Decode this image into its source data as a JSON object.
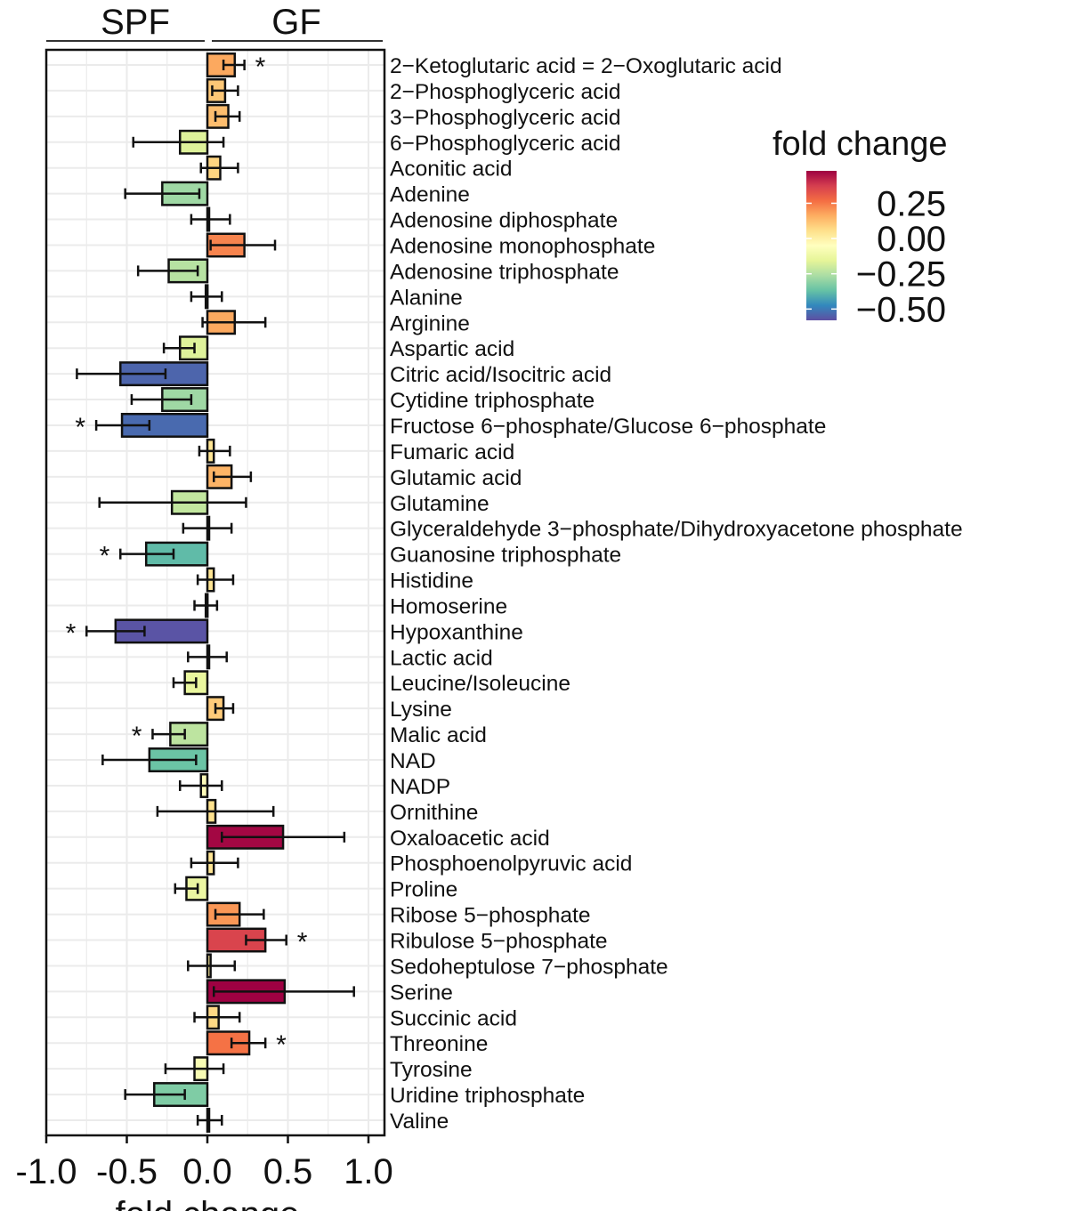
{
  "chart_data": {
    "type": "bar",
    "orientation": "horizontal",
    "group_labels": {
      "left": "SPF",
      "right": "GF"
    },
    "xlabel": "fold change",
    "xlim": [
      -1.0,
      1.0
    ],
    "xticks": [
      "-1.0",
      "-0.5",
      "0.0",
      "0.5",
      "1.0"
    ],
    "xtick_values": [
      -1.0,
      -0.5,
      0.0,
      0.5,
      1.0
    ],
    "grid": true,
    "legend": {
      "title": "fold change",
      "placement": "right",
      "ticks": [
        "0.25",
        "0.00",
        "-0.25",
        "-0.50"
      ],
      "tick_values": [
        0.25,
        0.0,
        -0.25,
        -0.5
      ],
      "range": [
        -0.58,
        0.48
      ],
      "colormap": [
        "#5e4fa2",
        "#3288bd",
        "#66c2a5",
        "#abdda4",
        "#e6f598",
        "#ffffbf",
        "#fee08b",
        "#fdae61",
        "#f46d43",
        "#d53e4f",
        "#9e0142"
      ]
    },
    "significance_marker": "*",
    "categories": [
      "2−Ketoglutaric acid = 2−Oxoglutaric acid",
      "2−Phosphoglyceric acid",
      "3−Phosphoglyceric acid",
      "6−Phosphoglyceric acid",
      "Aconitic acid",
      "Adenine",
      "Adenosine diphosphate",
      "Adenosine monophosphate",
      "Adenosine triphosphate",
      "Alanine",
      "Arginine",
      "Aspartic acid",
      "Citric acid/Isocitric acid",
      "Cytidine triphosphate",
      "Fructose 6−phosphate/Glucose 6−phosphate",
      "Fumaric acid",
      "Glutamic acid",
      "Glutamine",
      "Glyceraldehyde 3−phosphate/Dihydroxyacetone phosphate",
      "Guanosine triphosphate",
      "Histidine",
      "Homoserine",
      "Hypoxanthine",
      "Lactic acid",
      "Leucine/Isoleucine",
      "Lysine",
      "Malic acid",
      "NAD",
      "NADP",
      "Ornithine",
      "Oxaloacetic acid",
      "Phosphoenolpyruvic acid",
      "Proline",
      "Ribose 5−phosphate",
      "Ribulose 5−phosphate",
      "Sedoheptulose 7−phosphate",
      "Serine",
      "Succinic acid",
      "Threonine",
      "Tyrosine",
      "Uridine triphosphate",
      "Valine"
    ],
    "values": [
      0.17,
      0.11,
      0.13,
      -0.17,
      0.08,
      -0.28,
      0.01,
      0.23,
      -0.24,
      -0.01,
      0.17,
      -0.17,
      -0.54,
      -0.28,
      -0.53,
      0.04,
      0.15,
      -0.22,
      0.0,
      -0.38,
      0.04,
      -0.01,
      -0.57,
      0.0,
      -0.14,
      0.1,
      -0.23,
      -0.36,
      -0.04,
      0.05,
      0.47,
      0.04,
      -0.13,
      0.2,
      0.36,
      0.02,
      0.48,
      0.07,
      0.26,
      -0.08,
      -0.33,
      0.01
    ],
    "error_low": [
      0.1,
      0.03,
      0.05,
      -0.46,
      -0.04,
      -0.51,
      -0.1,
      0.02,
      -0.43,
      -0.1,
      -0.03,
      -0.27,
      -0.81,
      -0.47,
      -0.69,
      -0.05,
      0.04,
      -0.67,
      -0.15,
      -0.54,
      -0.06,
      -0.08,
      -0.75,
      -0.12,
      -0.21,
      0.05,
      -0.34,
      -0.65,
      -0.17,
      -0.31,
      0.09,
      -0.1,
      -0.2,
      0.05,
      0.24,
      -0.12,
      0.04,
      -0.08,
      0.15,
      -0.26,
      -0.51,
      -0.06
    ],
    "error_high": [
      0.23,
      0.19,
      0.2,
      0.1,
      0.19,
      -0.05,
      0.14,
      0.42,
      -0.06,
      0.09,
      0.36,
      -0.08,
      -0.26,
      -0.1,
      -0.36,
      0.14,
      0.27,
      0.24,
      0.15,
      -0.21,
      0.16,
      0.06,
      -0.39,
      0.12,
      -0.07,
      0.16,
      -0.14,
      -0.07,
      0.09,
      0.41,
      0.85,
      0.19,
      -0.06,
      0.35,
      0.49,
      0.17,
      0.91,
      0.2,
      0.36,
      0.1,
      -0.14,
      0.09
    ],
    "significant": [
      true,
      false,
      false,
      false,
      false,
      false,
      false,
      false,
      false,
      false,
      false,
      false,
      false,
      false,
      true,
      false,
      false,
      false,
      false,
      true,
      false,
      false,
      true,
      false,
      false,
      false,
      true,
      false,
      false,
      false,
      false,
      false,
      false,
      false,
      true,
      false,
      false,
      false,
      true,
      false,
      false,
      false
    ]
  }
}
